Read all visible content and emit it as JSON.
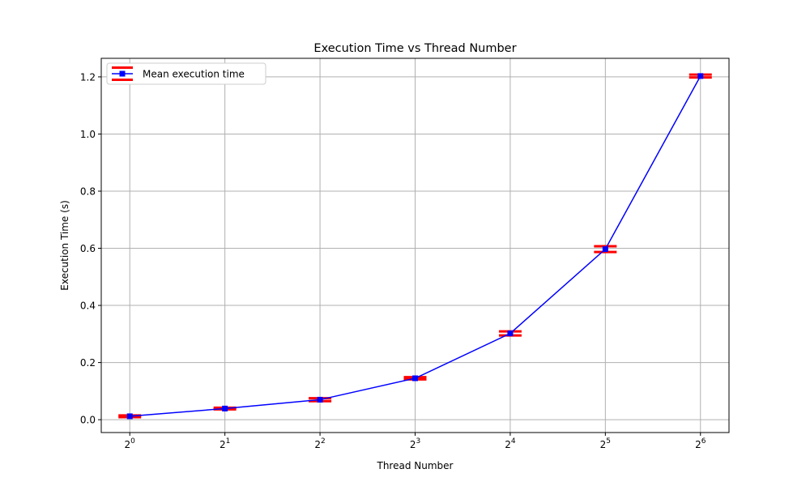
{
  "chart_data": {
    "type": "line",
    "title": "Execution Time vs Thread Number",
    "xlabel": "Thread Number",
    "ylabel": "Execution Time (s)",
    "x_scale": "log2",
    "x": [
      1,
      2,
      4,
      8,
      16,
      32,
      64
    ],
    "x_tick_base": "2",
    "x_tick_exponents": [
      "0",
      "1",
      "2",
      "3",
      "4",
      "5",
      "6"
    ],
    "y_ticks": [
      "0.0",
      "0.2",
      "0.4",
      "0.6",
      "0.8",
      "1.0",
      "1.2"
    ],
    "ylim": [
      -0.045,
      1.265
    ],
    "grid": true,
    "legend_position": "top-left",
    "series": [
      {
        "name": "Mean execution time",
        "values": [
          0.012,
          0.039,
          0.07,
          0.145,
          0.302,
          0.597,
          1.203
        ],
        "errors": [
          0.003,
          0.003,
          0.005,
          0.004,
          0.007,
          0.01,
          0.005
        ],
        "line_color": "#0000ff",
        "marker_color": "#0000ff",
        "error_color": "#ff0000"
      }
    ]
  }
}
